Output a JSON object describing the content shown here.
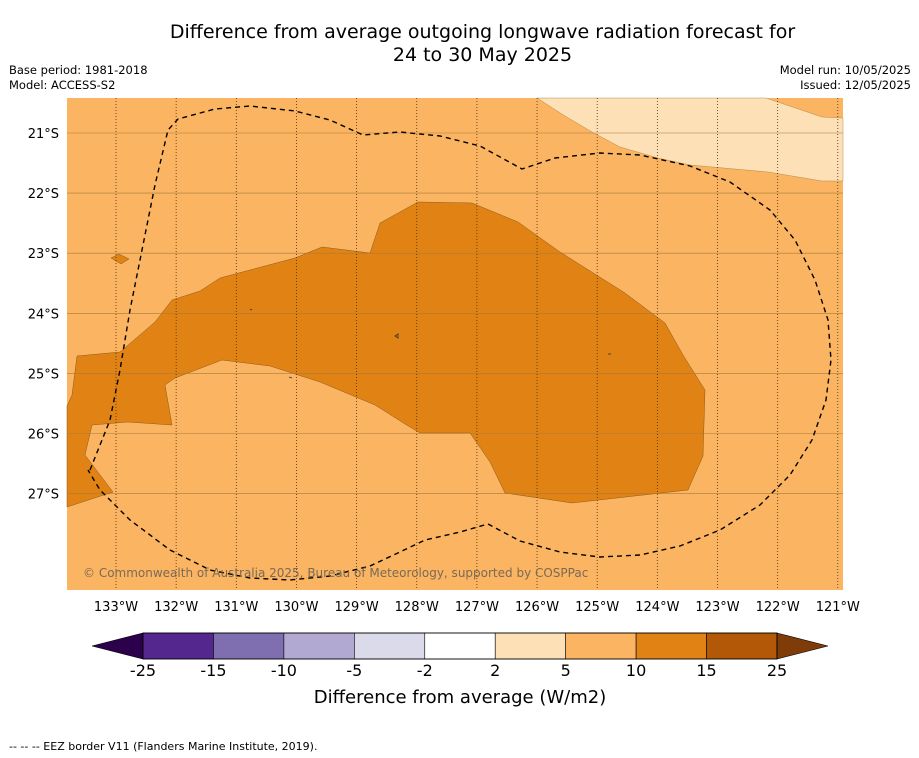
{
  "title_line1": "Difference from average outgoing longwave radiation forecast for",
  "title_line2": "24 to 30 May 2025",
  "base_period": "Base period: 1981-2018",
  "model": "Model: ACCESS-S2",
  "model_run": "Model run: 10/05/2025",
  "issued": "Issued: 12/05/2025",
  "copyright": "© Commonwealth of Australia 2025, Bureau of Meteorology, supported by COSPPac",
  "lat_labels": [
    "21°S",
    "22°S",
    "23°S",
    "24°S",
    "25°S",
    "26°S",
    "27°S"
  ],
  "lon_labels": [
    "133°W",
    "132°W",
    "131°W",
    "130°W",
    "129°W",
    "128°W",
    "127°W",
    "126°W",
    "125°W",
    "124°W",
    "123°W",
    "122°W",
    "121°W"
  ],
  "colorbar": {
    "label": "Difference from average (W/m2)",
    "ticks": [
      "-25",
      "-15",
      "-10",
      "-5",
      "-2",
      "2",
      "5",
      "10",
      "15",
      "25"
    ],
    "colors": [
      "#54278f",
      "#7f6eb0",
      "#b1a9d2",
      "#dadaeb",
      "#ffffff",
      "#fee0b6",
      "#fbb461",
      "#e08314",
      "#b35806"
    ],
    "under_color": "#2d004b",
    "over_color": "#7f3b08"
  },
  "map_colors": {
    "light": "#fee0b6",
    "medium": "#fbb461",
    "strong": "#e08314"
  },
  "footnote": "--  --  -- EEZ border V11 (Flanders Marine Institute, 2019)."
}
